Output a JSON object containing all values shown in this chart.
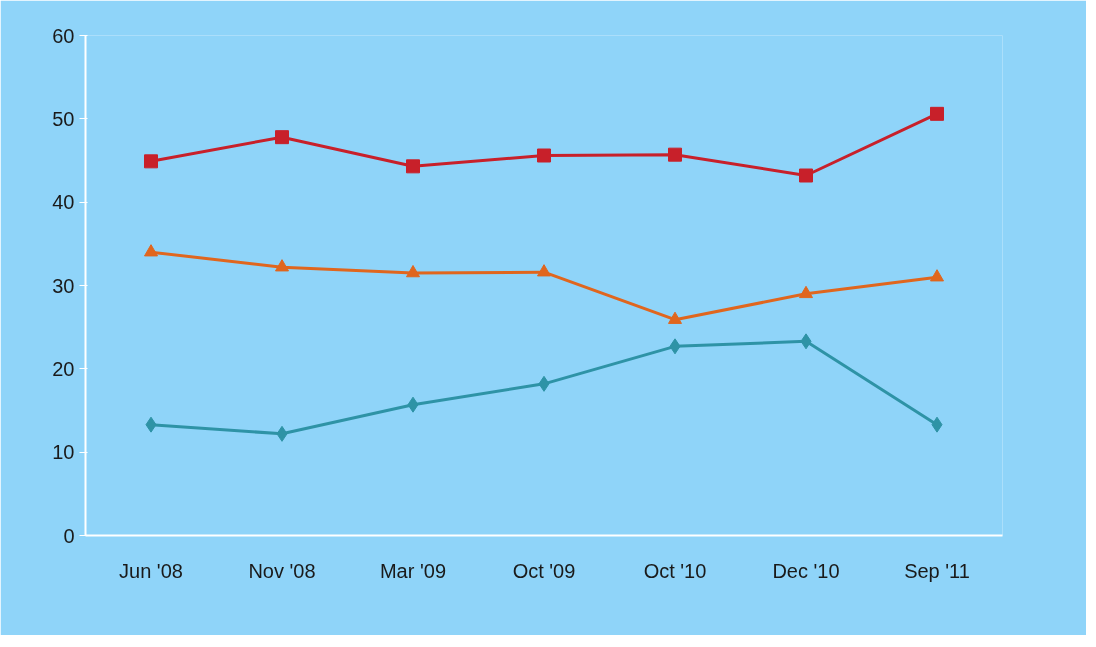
{
  "chart_data": {
    "type": "line",
    "categories": [
      "Jun '08",
      "Nov '08",
      "Mar '09",
      "Oct '09",
      "Oct '10",
      "Dec '10",
      "Sep '11"
    ],
    "ylim": [
      0,
      60
    ],
    "yticks": [
      0,
      10,
      20,
      30,
      40,
      50,
      60
    ],
    "grid": false,
    "series": [
      {
        "color": "#c8202a",
        "marker": "square",
        "values": [
          44.9,
          47.8,
          44.3,
          45.6,
          45.7,
          43.2,
          50.6
        ]
      },
      {
        "color": "#e0661e",
        "marker": "triangle",
        "values": [
          34.0,
          32.2,
          31.5,
          31.6,
          25.9,
          29.0,
          31.0
        ]
      },
      {
        "color": "#2e93a6",
        "marker": "diamond",
        "values": [
          13.3,
          12.2,
          15.7,
          18.2,
          22.7,
          23.3,
          13.3
        ]
      }
    ]
  }
}
